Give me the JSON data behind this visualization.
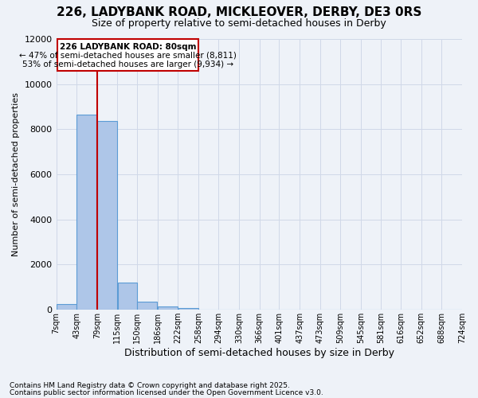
{
  "title_line1": "226, LADYBANK ROAD, MICKLEOVER, DERBY, DE3 0RS",
  "title_line2": "Size of property relative to semi-detached houses in Derby",
  "xlabel": "Distribution of semi-detached houses by size in Derby",
  "ylabel": "Number of semi-detached properties",
  "footnote1": "Contains HM Land Registry data © Crown copyright and database right 2025.",
  "footnote2": "Contains public sector information licensed under the Open Government Licence v3.0.",
  "annotation_title": "226 LADYBANK ROAD: 80sqm",
  "annotation_smaller": "← 47% of semi-detached houses are smaller (8,811)",
  "annotation_larger": "53% of semi-detached houses are larger (9,934) →",
  "property_size": 80,
  "bar_edges": [
    7,
    43,
    79,
    115,
    150,
    186,
    222,
    258,
    294,
    330,
    366,
    401,
    437,
    473,
    509,
    545,
    581,
    616,
    652,
    688,
    724
  ],
  "bar_values": [
    250,
    8650,
    8350,
    1200,
    350,
    130,
    65,
    0,
    0,
    0,
    0,
    0,
    0,
    0,
    0,
    0,
    0,
    0,
    0,
    0
  ],
  "bar_color": "#aec6e8",
  "bar_edge_color": "#5b9bd5",
  "vline_color": "#c00000",
  "grid_color": "#d0d8e8",
  "background_color": "#eef2f8",
  "annotation_box_color": "#c00000",
  "ylim": [
    0,
    12000
  ],
  "yticks": [
    0,
    2000,
    4000,
    6000,
    8000,
    10000,
    12000
  ],
  "tick_labels": [
    "7sqm",
    "43sqm",
    "79sqm",
    "115sqm",
    "150sqm",
    "186sqm",
    "222sqm",
    "258sqm",
    "294sqm",
    "330sqm",
    "366sqm",
    "401sqm",
    "437sqm",
    "473sqm",
    "509sqm",
    "545sqm",
    "581sqm",
    "616sqm",
    "652sqm",
    "688sqm",
    "724sqm"
  ]
}
